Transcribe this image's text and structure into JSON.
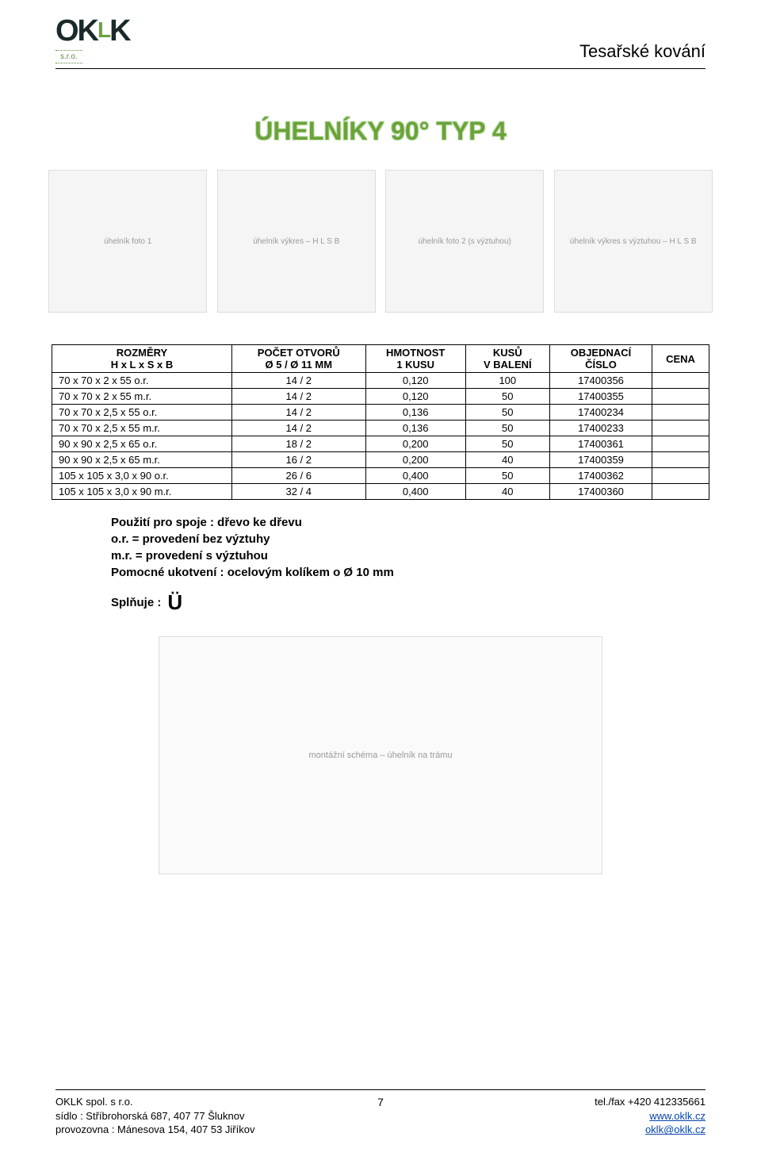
{
  "header": {
    "logo_main": "OKLK",
    "logo_sub": "s.r.o.",
    "category": "Tesařské kování"
  },
  "title": "ÚHELNÍKY 90° TYP 4",
  "images": {
    "alt1": "úhelník foto 1",
    "alt2": "úhelník výkres – H L S B",
    "alt3": "úhelník foto 2 (s výztuhou)",
    "alt4": "úhelník výkres s výztuhou – H L S B"
  },
  "table": {
    "columns": [
      {
        "line1": "ROZMĚRY",
        "line2": "H x L x S x B"
      },
      {
        "line1": "POČET OTVORŮ",
        "line2": "Ø 5 / Ø 11 MM"
      },
      {
        "line1": "HMOTNOST",
        "line2": "1 KUSU"
      },
      {
        "line1": "KUSŮ",
        "line2": "V BALENÍ"
      },
      {
        "line1": "OBJEDNACÍ",
        "line2": "ČÍSLO"
      },
      {
        "line1": "CENA",
        "line2": ""
      }
    ],
    "rows": [
      {
        "rozm": "70 x 70 x 2 x 55 o.r.",
        "otv": "14 / 2",
        "hm": "0,120",
        "ks": "100",
        "obj": "17400356",
        "cena": ""
      },
      {
        "rozm": "70 x 70 x 2 x 55 m.r.",
        "otv": "14 / 2",
        "hm": "0,120",
        "ks": "50",
        "obj": "17400355",
        "cena": ""
      },
      {
        "rozm": "70 x 70 x 2,5 x 55 o.r.",
        "otv": "14 / 2",
        "hm": "0,136",
        "ks": "50",
        "obj": "17400234",
        "cena": ""
      },
      {
        "rozm": "70 x 70 x 2,5 x 55 m.r.",
        "otv": "14 / 2",
        "hm": "0,136",
        "ks": "50",
        "obj": "17400233",
        "cena": ""
      },
      {
        "rozm": "90 x 90 x 2,5 x 65 o.r.",
        "otv": "18 / 2",
        "hm": "0,200",
        "ks": "50",
        "obj": "17400361",
        "cena": ""
      },
      {
        "rozm": "90 x 90 x 2,5 x 65 m.r.",
        "otv": "16 / 2",
        "hm": "0,200",
        "ks": "40",
        "obj": "17400359",
        "cena": ""
      },
      {
        "rozm": "105 x 105 x 3,0 x 90 o.r.",
        "otv": "26 / 6",
        "hm": "0,400",
        "ks": "50",
        "obj": "17400362",
        "cena": ""
      },
      {
        "rozm": "105 x 105 x 3,0 x 90 m.r.",
        "otv": "32 / 4",
        "hm": "0,400",
        "ks": "40",
        "obj": "17400360",
        "cena": ""
      }
    ]
  },
  "notes": {
    "line1": "Použití pro spoje : dřevo ke dřevu",
    "line2": "o.r. = provedení bez výztuhy",
    "line3": "m.r. = provedení s výztuhou",
    "line4": "Pomocné ukotvení : ocelovým kolíkem o Ø 10 mm",
    "splnuje": "Splňuje :",
    "glyph": "Ü"
  },
  "usage_img_alt": "montážní schéma – úhelník na trámu",
  "footer": {
    "page_no": "7",
    "left1": "OKLK spol. s r.o.",
    "left2": "sídlo : Stříbrohorská 687, 407 77 Šluknov",
    "left3": "provozovna : Mánesova 154,  407 53 Jiříkov",
    "right1": "tel./fax +420  412335661",
    "right2_link": "www.oklk.cz",
    "right3_link": "oklk@oklk.cz"
  }
}
